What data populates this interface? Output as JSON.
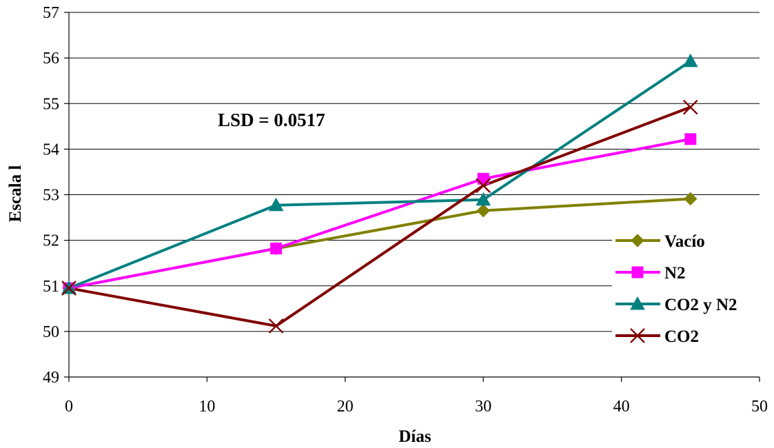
{
  "chart_data": {
    "type": "line",
    "xlabel": "Días",
    "ylabel": "Escala l",
    "xlim": [
      0,
      50
    ],
    "ylim": [
      49,
      57
    ],
    "x_ticks": [
      0,
      10,
      20,
      30,
      40,
      50
    ],
    "y_ticks": [
      49,
      50,
      51,
      52,
      53,
      54,
      55,
      56,
      57
    ],
    "grid": "horizontal",
    "legend_position": "right",
    "annotation": "LSD = 0.0517",
    "x": [
      0,
      15,
      30,
      45
    ],
    "series": [
      {
        "name": "Vacío",
        "values": [
          50.95,
          51.82,
          52.65,
          52.91
        ],
        "color": "#808000",
        "marker": "diamond"
      },
      {
        "name": "N2",
        "values": [
          50.95,
          51.82,
          53.35,
          54.22
        ],
        "color": "#ff00ff",
        "marker": "square"
      },
      {
        "name": "CO2 y N2",
        "values": [
          50.95,
          52.77,
          52.89,
          55.93
        ],
        "color": "#008080",
        "marker": "triangle"
      },
      {
        "name": "CO2",
        "values": [
          50.95,
          50.12,
          53.2,
          54.92
        ],
        "color": "#800000",
        "marker": "x"
      }
    ]
  }
}
